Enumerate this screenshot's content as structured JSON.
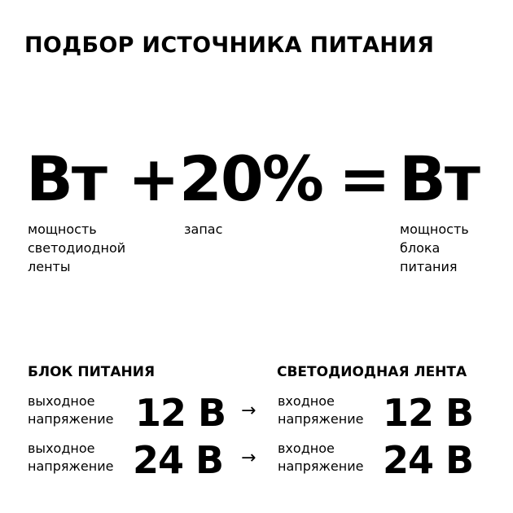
{
  "title": "ПОДБОР ИСТОЧНИКА ПИТАНИЯ",
  "formula": {
    "term1": "Вт",
    "term1_label": "мощность\nсветодиодной\nленты",
    "plus": "+",
    "term2": "20%",
    "term2_label": "запас",
    "equals": "=",
    "result": "Вт",
    "result_label": "мощность\nблока\nпитания"
  },
  "table": {
    "left_header": "БЛОК ПИТАНИЯ",
    "right_header": "СВЕТОДИОДНАЯ ЛЕНТА",
    "arrow": "→",
    "rows": [
      {
        "left_label": "выходное\nнапряжение",
        "left_value": "12 В",
        "right_label": "входное\nнапряжение",
        "right_value": "12 В"
      },
      {
        "left_label": "выходное\nнапряжение",
        "left_value": "24 В",
        "right_label": "входное\nнапряжение",
        "right_value": "24 В"
      }
    ]
  }
}
